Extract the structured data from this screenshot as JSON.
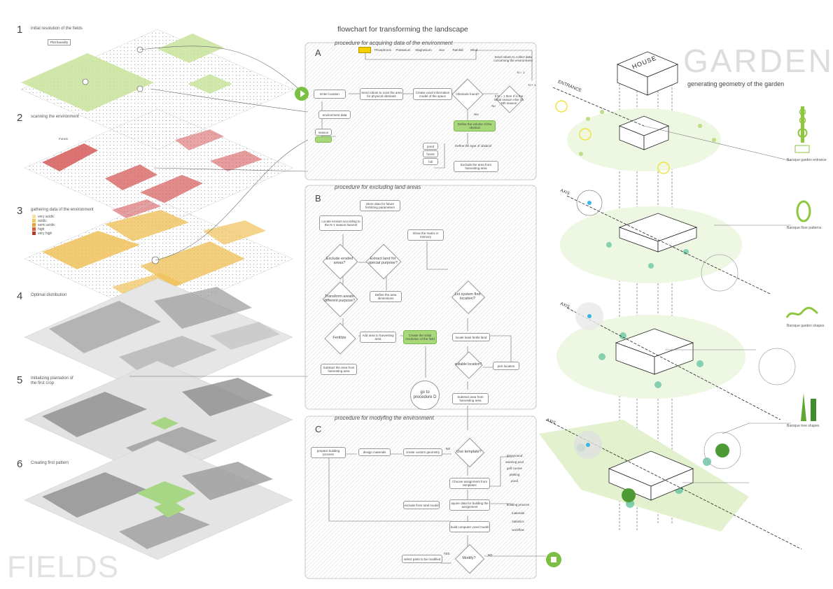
{
  "title": "flowchart for transforming the landscape",
  "fields": {
    "word": "FIELDS",
    "steps": [
      {
        "n": "1",
        "label": "initial resolution of the fields"
      },
      {
        "n": "2",
        "label": "scanning the environment"
      },
      {
        "n": "3",
        "label": "gathering data of the environment"
      },
      {
        "n": "4",
        "label": "Optimal distribution"
      },
      {
        "n": "5",
        "label": "Initializing plantation of the first crop"
      },
      {
        "n": "6",
        "label": "Creating first pattern"
      }
    ],
    "plot_label": "Plot boundry",
    "forest_label": "Forest",
    "legend": [
      {
        "label": "very acidic",
        "color": "#f5e3a6"
      },
      {
        "label": "acidic",
        "color": "#f0c95c"
      },
      {
        "label": "semi acidic",
        "color": "#e8a23a"
      },
      {
        "label": "high",
        "color": "#d9603a"
      },
      {
        "label": "very high",
        "color": "#b03a2e"
      }
    ],
    "colors": {
      "green": "#c8e39a",
      "red": "#d65a5a",
      "yellow": "#efc15a",
      "gray": "#9a9a9a"
    }
  },
  "panelA": {
    "letter": "A",
    "title": "procedure for acquiring data of the environment",
    "params": [
      "Phosphorus",
      "Potassium",
      "Magnesium",
      "Sun",
      "Rainfall",
      "Wind"
    ],
    "nodes": {
      "enter": "Enter location",
      "send_scan": "Send robots to scan the area for physical obsticals",
      "voxel": "Create voxel information model of the space",
      "obst": "Obsticals found?",
      "send_collect": "Send robots to collect data concerning the environment",
      "env_data": "environment data",
      "season": "season",
      "define_vol": "Define the volume of the obstical",
      "define_type": "Define the type of obstical",
      "exclude": "Exclude the area from harvesting area",
      "initial": "If N = 1 then If is the initial season else it's Nth season",
      "pond": "pond",
      "forest": "forest",
      "hill": "hill",
      "yes": "Yes",
      "no": "No",
      "n1": "N = 1",
      "n2": "N > 1"
    }
  },
  "panelB": {
    "letter": "B",
    "title": "procedure for excluding land areas",
    "nodes": {
      "store": "Store data for future fertilizing parameters",
      "locate_erosion": "Locate erosion according to the N-1 season harvest",
      "show_matrix": "Show the matrix in memory",
      "exclude_eroded": "Exclude eroded areas?",
      "extract": "Extract land for special purpose?",
      "transform": "Transform areato different purpose?",
      "define_dims": "Define the area dimensions",
      "let_system": "Let system find location?",
      "fertilize": "Fertilize",
      "add_area": "Add area to harvesting area",
      "create_res": "Create the initial resolution of the field",
      "locate_least": "locate least fertile land",
      "suitable": "suitable location?",
      "pick": "pick location",
      "subtract1": "Subtract the area from harvesting area",
      "subtract2": "Subtract area from harvesting area",
      "go_d": "go to procedure D"
    }
  },
  "panelC": {
    "letter": "C",
    "title": "procedure for modyfing the environment",
    "nodes": {
      "prepare": "prepare building process",
      "design": "design materials",
      "custom": "create custom geometry",
      "use_template": "Use template?",
      "choose": "Choose assignment from templates",
      "acquire": "aquire data for building the assignment",
      "exclude_model": "exclude from total model",
      "build": "build computer voxel model",
      "modify": "Modify?",
      "select": "select parts to be modified",
      "templates": [
        "playground",
        "swiming pool",
        "golf course",
        "parking",
        "pond"
      ],
      "data": [
        "building process",
        "materials",
        "statistics",
        "workflow"
      ],
      "yes": "YES",
      "no": "NO"
    }
  },
  "garden": {
    "word": "GARDEN",
    "subtitle": "generating geometry of the garden",
    "house": "HOUSE",
    "entrance": "ENTRANCE",
    "axis": "AXIS",
    "items": [
      "Baroque garden entrance",
      "Baroque floor patterns",
      "Baroque garden shapes",
      "Baroque tree shapes"
    ]
  }
}
